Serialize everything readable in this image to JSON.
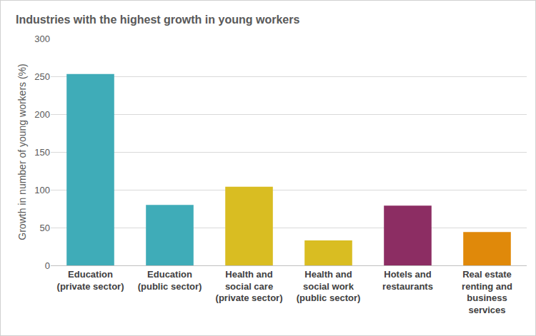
{
  "chart_data": {
    "type": "bar",
    "title": "Industries with the highest growth in young workers",
    "y_label": "Growth in number of young workers (%)",
    "categories": [
      "Education (private sector)",
      "Education (public sector)",
      "Health and social care (private sector)",
      "Health and social work (public sector)",
      "Hotels and restaurants",
      "Real estate renting and business services"
    ],
    "values": [
      253,
      80,
      104,
      33,
      79,
      44
    ],
    "colors": [
      "#3facb8",
      "#3facb8",
      "#d9bd22",
      "#d9bd22",
      "#8c2d63",
      "#e0890a"
    ],
    "ylim": [
      0,
      300
    ],
    "yticks": [
      0,
      50,
      100,
      150,
      200,
      250,
      300
    ],
    "grid": true
  }
}
